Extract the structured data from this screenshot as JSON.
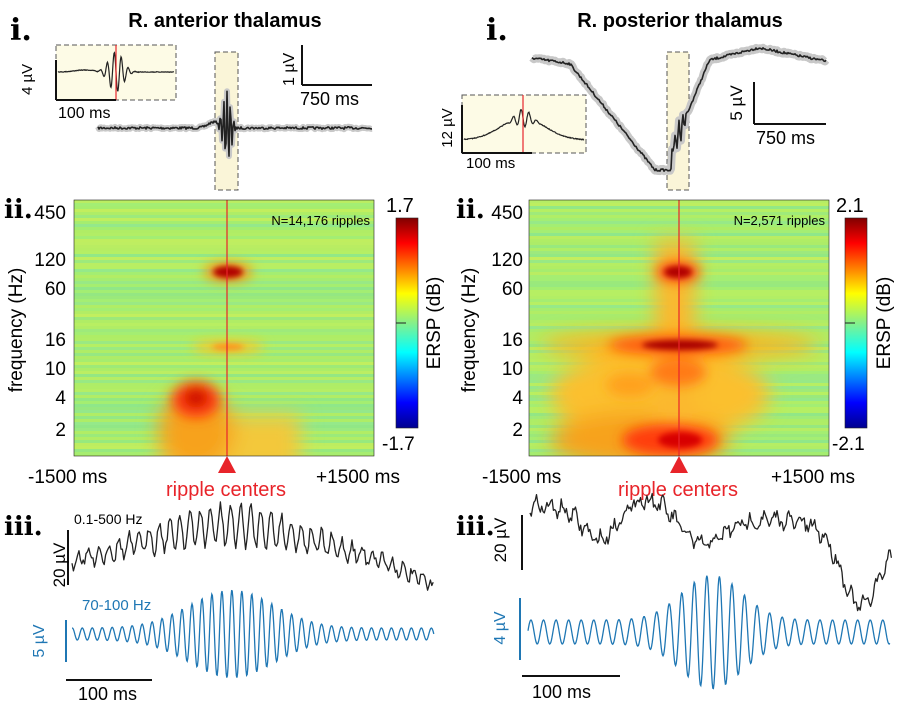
{
  "colors": {
    "trace": "#222222",
    "band": "#c8c8c8",
    "red": "#e8242a",
    "blue": "#1f77b4",
    "inset_bg": "#fdfbe6",
    "highlight_bg": "#faf5d8"
  },
  "panels": [
    {
      "id": "left",
      "title": "R. anterior thalamus",
      "label_i": "i.",
      "label_ii": "ii.",
      "label_iii": "iii.",
      "inset_scale_y": "4 µV",
      "inset_scale_x": "100 ms",
      "main_scale_y": "1 µV",
      "main_scale_x": "750 ms",
      "heatmap": {
        "n_label": "N=14,176 ripples",
        "ylabel": "frequency (Hz)",
        "yticks": [
          "450",
          "120",
          "60",
          "16",
          "10",
          "4",
          "2"
        ],
        "xtick_left": "-1500 ms",
        "xtick_right": "+1500 ms",
        "center_label": "ripple centers",
        "cbar_max": "1.7",
        "cbar_min": "-1.7",
        "cbar_label": "ERSP (dB)"
      },
      "broadband_label": "0.1-500 Hz",
      "broadband_scale": "20 µV",
      "ripple_label": "70-100 Hz",
      "ripple_scale": "5 µV",
      "time_scale": "100 ms"
    },
    {
      "id": "right",
      "title": "R. posterior thalamus",
      "label_i": "i.",
      "label_ii": "ii.",
      "label_iii": "iii.",
      "inset_scale_y": "12 µV",
      "inset_scale_x": "100 ms",
      "main_scale_y": "5 µV",
      "main_scale_x": "750 ms",
      "heatmap": {
        "n_label": "N=2,571 ripples",
        "ylabel": "frequency (Hz)",
        "yticks": [
          "450",
          "120",
          "60",
          "16",
          "10",
          "4",
          "2"
        ],
        "xtick_left": "-1500 ms",
        "xtick_right": "+1500 ms",
        "center_label": "ripple centers",
        "cbar_max": "2.1",
        "cbar_min": "-2.1",
        "cbar_label": "ERSP (dB)"
      },
      "broadband_scale": "20 µV",
      "ripple_scale": "4 µV",
      "time_scale": "100 ms"
    }
  ]
}
